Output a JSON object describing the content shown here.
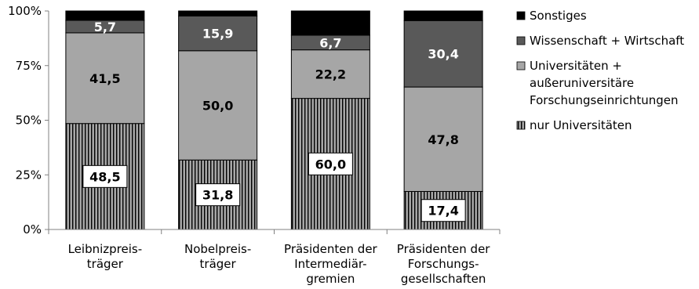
{
  "chart_data": {
    "type": "bar",
    "stacked": true,
    "categories": [
      [
        "Leibnizpreis-",
        "träger"
      ],
      [
        "Nobelpreis-",
        "träger"
      ],
      [
        "Präsidenten der",
        "Intermediär-",
        "gremien"
      ],
      [
        "Präsidenten der",
        "Forschungs-",
        "gesellschaften"
      ]
    ],
    "series": [
      {
        "name": "nur Universitäten",
        "values": [
          48.5,
          31.8,
          60.0,
          17.4
        ],
        "labels": [
          "48,5",
          "31,8",
          "60,0",
          "17,4"
        ],
        "fill": "#a6a6a6",
        "pattern": "vertical-stripes"
      },
      {
        "name": "Universitäten + außeruniversitäre Forschungseinrichtungen",
        "values": [
          41.5,
          50.0,
          22.2,
          47.8
        ],
        "labels": [
          "41,5",
          "50,0",
          "22,2",
          "47,8"
        ],
        "fill": "#a6a6a6"
      },
      {
        "name": "Wissenschaft + Wirtschaft",
        "values": [
          5.7,
          15.9,
          6.7,
          30.4
        ],
        "labels": [
          "5,7",
          "15,9",
          "6,7",
          "30,4"
        ],
        "fill": "#595959"
      },
      {
        "name": "Sonstiges",
        "values": [
          4.3,
          2.3,
          11.1,
          4.4
        ],
        "labels": [
          "",
          "",
          "",
          ""
        ],
        "fill": "#000000"
      }
    ],
    "legend_labels": [
      [
        "Sonstiges"
      ],
      [
        "Wissenschaft + Wirtschaft"
      ],
      [
        "Universitäten +",
        "außeruniversitäre",
        "Forschungseinrichtungen"
      ],
      [
        "nur Universitäten"
      ]
    ],
    "ytick_labels": [
      "0%",
      "25%",
      "50%",
      "75%",
      "100%"
    ],
    "ylim": [
      0,
      100
    ],
    "legend_position": "right",
    "grid": false
  }
}
